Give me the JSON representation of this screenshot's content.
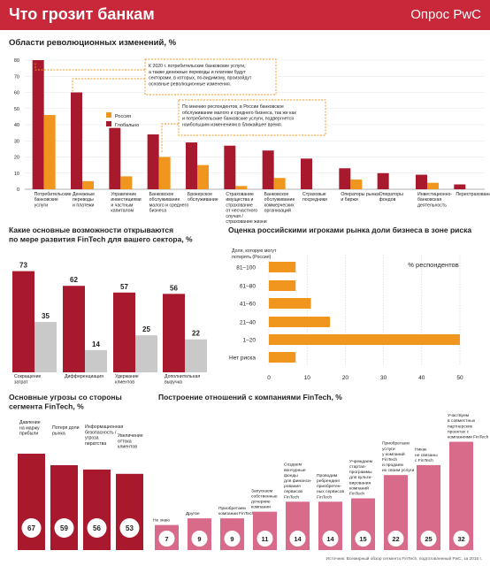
{
  "header": {
    "title": "Что грозит банкам",
    "brand": "Опрос PwC"
  },
  "colors": {
    "red": "#a8192e",
    "orange": "#f0961e",
    "gray": "#c9c9c9",
    "pink": "#d96b8a",
    "accent": "#c8283a"
  },
  "chart_data": [
    {
      "type": "bar",
      "title": "Области революционных изменений, %",
      "ylim": [
        0,
        80
      ],
      "yticks": [
        "0",
        "10",
        "20",
        "30",
        "40",
        "50",
        "60",
        "70",
        "80"
      ],
      "legend": {
        "placement": "middle-left",
        "russia": "Россия",
        "global": "Глобально"
      },
      "categories": [
        [
          "Потребительские",
          "банковские",
          "услуги"
        ],
        [
          "Денежные",
          "переводы",
          "и платежи"
        ],
        [
          "Управление",
          "инвестициями",
          "и частным",
          "капиталом"
        ],
        [
          "Банковское",
          "обслуживание",
          "малого и среднего",
          "бизнеса"
        ],
        [
          "Брокерское",
          "обслуживание"
        ],
        [
          "Страхование",
          "имущества и",
          "страхование",
          "от несчастного",
          "случая /",
          "страхование жизни"
        ],
        [
          "Банковское",
          "обслуживание",
          "коммерческих",
          "организаций"
        ],
        [
          "Страховые",
          "посредники"
        ],
        [
          "Операторы рынка",
          "и биржи"
        ],
        [
          "Операторы",
          "фондов"
        ],
        [
          "Инвестиционно-",
          "банковская",
          "деятельность"
        ],
        [
          "Перестрахование"
        ]
      ],
      "series": [
        {
          "name": "Глобально",
          "values": [
            80,
            60,
            38,
            34,
            29,
            27,
            24,
            19,
            13,
            10,
            9,
            3
          ]
        },
        {
          "name": "Россия",
          "values": [
            46,
            5,
            8,
            20,
            15,
            2,
            7,
            0,
            6,
            0,
            4,
            0
          ]
        }
      ],
      "annotations": [
        [
          "К 2020 г. потребительские банковские услуги,",
          "а также денежные переводы и платежи будут",
          "секторами, в которых, по-видимому, произойдут",
          "основные революционные изменения."
        ],
        [
          "По мнению респондентов, в России банковское",
          "обслуживание малого и среднего бизнеса, так же как",
          "и потребительские банковские услуги, подвергнется",
          "наибольшим изменениям в ближайшее время."
        ]
      ]
    },
    {
      "type": "bar",
      "title": [
        "Какие основные возможности открываются",
        "по мере развития FinTech для вашего сектора, %"
      ],
      "categories": [
        [
          "Сокращение",
          "затрат"
        ],
        [
          "Дифференциация"
        ],
        [
          "Удержание",
          "клиентов"
        ],
        [
          "Дополнительная",
          "выручка"
        ]
      ],
      "series": [
        {
          "values": [
            73,
            62,
            57,
            56
          ]
        },
        {
          "values": [
            35,
            14,
            25,
            22
          ]
        }
      ],
      "ylim": [
        0,
        80
      ]
    },
    {
      "type": "bar",
      "orientation": "horizontal",
      "title": "Оценка  российскими игроками рынка доли бизнеса в зоне риска",
      "ycaption": [
        "Доля, которую могут",
        "потерять (Россия)"
      ],
      "xlabel": "% респондентов",
      "categories": [
        "81–100",
        "61–80",
        "41–60",
        "21–40",
        "1–20",
        "Нет риска"
      ],
      "values": [
        7,
        7,
        11,
        16,
        50,
        7
      ],
      "xlim": [
        0,
        50
      ],
      "xticks": [
        "0",
        "10",
        "20",
        "30",
        "40",
        "50"
      ]
    },
    {
      "type": "bar",
      "title": [
        "Основные угрозы со стороны",
        "сегмента FinTech, %"
      ],
      "categories": [
        [
          "Давление",
          "на маржу",
          "прибыли"
        ],
        [
          "Потеря доли",
          "рынка"
        ],
        [
          "Информационная",
          "безопасность /",
          "угроза",
          "пиратства"
        ],
        [
          "Увеличение",
          "оттока",
          "клиентов"
        ]
      ],
      "values": [
        67,
        59,
        56,
        53
      ],
      "ylim": [
        0,
        75
      ]
    },
    {
      "type": "bar",
      "title": "Построение отношений с компаниями FinTech, %",
      "categories": [
        [
          "Не знаю"
        ],
        [
          "Другое"
        ],
        [
          "Приобретаем",
          "компании FinTech"
        ],
        [
          "Запускаем",
          "собственные",
          "дочерние",
          "компании"
        ],
        [
          "Создаем",
          "венчурные",
          "фонды",
          "для финанси-",
          "рования",
          "сервисов",
          "FinTech"
        ],
        [
          "Проводим",
          "ребрендинг",
          "приобретен-",
          "ных сервисов",
          "FinTech"
        ],
        [
          "Учреждаем",
          "стартап-",
          "программы",
          "для культи-",
          "вирования",
          "компаний",
          "FinTech"
        ],
        [
          "Приобретаем",
          "услуги",
          "у компаний",
          "FinTech",
          "и продаем",
          "их своим услуги"
        ],
        [
          "Никак",
          "не связаны",
          "с FinTech"
        ],
        [
          "Участвуем",
          "в совместных",
          "партнерских",
          "проектах с",
          "компаниями FinTech"
        ]
      ],
      "values": [
        7,
        9,
        9,
        11,
        14,
        14,
        15,
        22,
        25,
        32
      ],
      "ylim": [
        0,
        34
      ]
    }
  ],
  "source": "Источник: Всемирный обзор сегмента FinTech, подготовленный PwC, за 2016 г."
}
